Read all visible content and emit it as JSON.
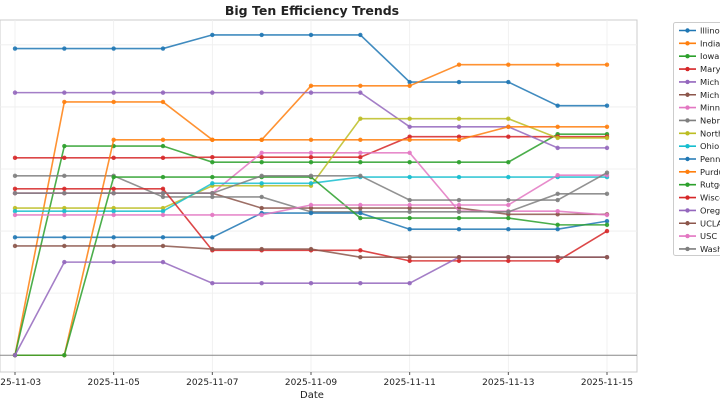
{
  "chart_data": {
    "type": "line",
    "title": "Big Ten Efficiency Trends",
    "xlabel": "Date",
    "ylabel": "",
    "x": [
      "2025-11-03",
      "2025-11-04",
      "2025-11-05",
      "2025-11-06",
      "2025-11-07",
      "2025-11-08",
      "2025-11-09",
      "2025-11-10",
      "2025-11-11",
      "2025-11-12",
      "2025-11-13",
      "2025-11-14",
      "2025-11-15"
    ],
    "xticks": [
      "2025-11-03",
      "2025-11-05",
      "2025-11-07",
      "2025-11-09",
      "2025-11-11",
      "2025-11-13",
      "2025-11-15"
    ],
    "ylim": [
      -0.27,
      5.4
    ],
    "grid": true,
    "legend_position": "outside-right",
    "series": [
      {
        "name": "Illinois",
        "color": "#1f77b4",
        "values": [
          4.94,
          4.94,
          4.94,
          4.94,
          5.16,
          5.16,
          5.16,
          5.16,
          4.4,
          4.4,
          4.4,
          4.02,
          4.02
        ]
      },
      {
        "name": "Indiana",
        "color": "#ff7f0e",
        "values": [
          0,
          4.08,
          4.08,
          4.08,
          3.47,
          3.47,
          4.34,
          4.34,
          4.34,
          4.68,
          4.68,
          4.68,
          4.68
        ]
      },
      {
        "name": "Iowa",
        "color": "#2ca02c",
        "values": [
          0,
          3.37,
          3.37,
          3.37,
          3.11,
          3.11,
          3.11,
          3.11,
          3.11,
          3.11,
          3.11,
          3.56,
          3.56
        ]
      },
      {
        "name": "Maryland",
        "color": "#d62728",
        "values": [
          3.18,
          3.18,
          3.18,
          3.18,
          3.19,
          3.19,
          3.19,
          3.19,
          3.52,
          3.52,
          3.52,
          3.52,
          3.52
        ]
      },
      {
        "name": "Michigan",
        "color": "#9467bd",
        "values": [
          4.23,
          4.23,
          4.23,
          4.23,
          4.23,
          4.23,
          4.23,
          4.23,
          3.68,
          3.68,
          3.68,
          3.34,
          3.34
        ]
      },
      {
        "name": "Michigan State",
        "color": "#8c564b",
        "values": [
          2.61,
          2.61,
          2.61,
          2.61,
          2.61,
          2.37,
          2.37,
          2.37,
          2.37,
          2.37,
          2.27,
          2.27,
          2.27
        ]
      },
      {
        "name": "Minnesota",
        "color": "#e377c2",
        "values": [
          2.61,
          2.61,
          2.61,
          2.61,
          2.61,
          3.26,
          3.26,
          3.26,
          3.26,
          2.32,
          2.32,
          2.32,
          2.26
        ]
      },
      {
        "name": "Nebraska",
        "color": "#7f7f7f",
        "values": [
          2.89,
          2.89,
          2.89,
          2.55,
          2.55,
          2.55,
          2.31,
          2.31,
          2.31,
          2.31,
          2.31,
          2.6,
          2.6
        ]
      },
      {
        "name": "Northwestern",
        "color": "#bcbd22",
        "values": [
          2.37,
          2.37,
          2.37,
          2.37,
          2.73,
          2.73,
          2.73,
          3.81,
          3.81,
          3.81,
          3.81,
          3.5,
          3.5
        ]
      },
      {
        "name": "Ohio State",
        "color": "#17becf",
        "values": [
          2.32,
          2.32,
          2.32,
          2.32,
          2.77,
          2.77,
          2.77,
          2.87,
          2.87,
          2.87,
          2.87,
          2.87,
          2.87
        ]
      },
      {
        "name": "Penn State",
        "color": "#1f77b4",
        "values": [
          1.9,
          1.9,
          1.9,
          1.9,
          1.9,
          2.29,
          2.29,
          2.29,
          2.03,
          2.03,
          2.03,
          2.03,
          2.16
        ]
      },
      {
        "name": "Purdue",
        "color": "#ff7f0e",
        "values": [
          0,
          0,
          3.47,
          3.47,
          3.47,
          3.47,
          3.47,
          3.47,
          3.47,
          3.47,
          3.68,
          3.68,
          3.68
        ]
      },
      {
        "name": "Rutgers",
        "color": "#2ca02c",
        "values": [
          0,
          0,
          2.87,
          2.87,
          2.87,
          2.87,
          2.87,
          2.21,
          2.21,
          2.21,
          2.21,
          2.1,
          2.1
        ]
      },
      {
        "name": "Wisconsin",
        "color": "#d62728",
        "values": [
          2.68,
          2.68,
          2.68,
          2.68,
          1.69,
          1.69,
          1.69,
          1.69,
          1.52,
          1.52,
          1.52,
          1.52,
          2.0
        ]
      },
      {
        "name": "Oregon",
        "color": "#9467bd",
        "values": [
          0,
          1.5,
          1.5,
          1.5,
          1.16,
          1.16,
          1.16,
          1.16,
          1.16,
          1.58,
          1.58,
          1.58,
          1.58
        ]
      },
      {
        "name": "UCLA",
        "color": "#8c564b",
        "values": [
          1.76,
          1.76,
          1.76,
          1.76,
          1.71,
          1.71,
          1.71,
          1.58,
          1.58,
          1.58,
          1.58,
          1.58,
          1.58
        ]
      },
      {
        "name": "USC",
        "color": "#e377c2",
        "values": [
          2.26,
          2.26,
          2.26,
          2.26,
          2.26,
          2.26,
          2.42,
          2.42,
          2.42,
          2.42,
          2.42,
          2.9,
          2.9
        ]
      },
      {
        "name": "Washington",
        "color": "#7f7f7f",
        "values": [
          2.61,
          2.61,
          2.61,
          2.61,
          2.61,
          2.89,
          2.89,
          2.89,
          2.5,
          2.5,
          2.5,
          2.5,
          2.94
        ]
      }
    ]
  }
}
